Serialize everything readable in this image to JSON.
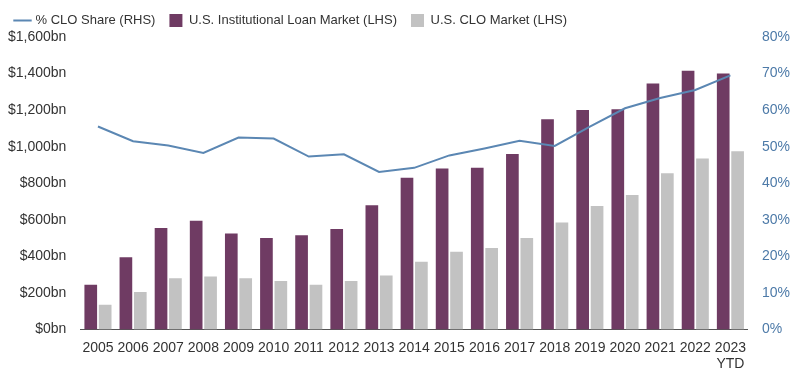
{
  "chart_data": {
    "type": "bar",
    "categories": [
      "2005",
      "2006",
      "2007",
      "2008",
      "2009",
      "2010",
      "2011",
      "2012",
      "2013",
      "2014",
      "2015",
      "2016",
      "2017",
      "2018",
      "2019",
      "2020",
      "2021",
      "2022",
      "2023\nYTD"
    ],
    "series": [
      {
        "name": "U.S. Institutional Loan Market (LHS)",
        "type": "bar",
        "color": "#6f3b63",
        "values": [
          245,
          395,
          555,
          595,
          525,
          500,
          515,
          550,
          680,
          830,
          880,
          885,
          960,
          1150,
          1200,
          1205,
          1345,
          1415,
          1400
        ]
      },
      {
        "name": "U.S. CLO Market (LHS)",
        "type": "bar",
        "color": "#c2c2c2",
        "values": [
          135,
          205,
          280,
          290,
          280,
          265,
          245,
          265,
          295,
          370,
          425,
          445,
          500,
          585,
          675,
          735,
          855,
          935,
          975
        ]
      },
      {
        "name": "% CLO Share (RHS)",
        "type": "line",
        "axis": "y2",
        "color": "#5b87b3",
        "values": [
          55.5,
          51.5,
          50.3,
          48.3,
          52.5,
          52.2,
          47.3,
          47.9,
          43.1,
          44.2,
          47.6,
          49.5,
          51.6,
          50.2,
          55.5,
          60.5,
          63.3,
          65.5,
          69.5
        ]
      }
    ],
    "ylim": [
      0,
      1600
    ],
    "yticks": [
      {
        "value": 0,
        "label": "$0bn"
      },
      {
        "value": 200,
        "label": "$200bn"
      },
      {
        "value": 400,
        "label": "$400bn"
      },
      {
        "value": 600,
        "label": "$600bn"
      },
      {
        "value": 800,
        "label": "$800bn"
      },
      {
        "value": 1000,
        "label": "$1,000bn"
      },
      {
        "value": 1200,
        "label": "$1,200bn"
      },
      {
        "value": 1400,
        "label": "$1,400bn"
      },
      {
        "value": 1600,
        "label": "$1,600bn"
      }
    ],
    "y2lim": [
      0,
      80
    ],
    "y2ticks": [
      {
        "value": 0,
        "label": "0%"
      },
      {
        "value": 10,
        "label": "10%"
      },
      {
        "value": 20,
        "label": "20%"
      },
      {
        "value": 30,
        "label": "30%"
      },
      {
        "value": 40,
        "label": "40%"
      },
      {
        "value": 50,
        "label": "50%"
      },
      {
        "value": 60,
        "label": "60%"
      },
      {
        "value": 70,
        "label": "70%"
      },
      {
        "value": 80,
        "label": "80%"
      }
    ],
    "grid": false,
    "legend": "top-left"
  }
}
